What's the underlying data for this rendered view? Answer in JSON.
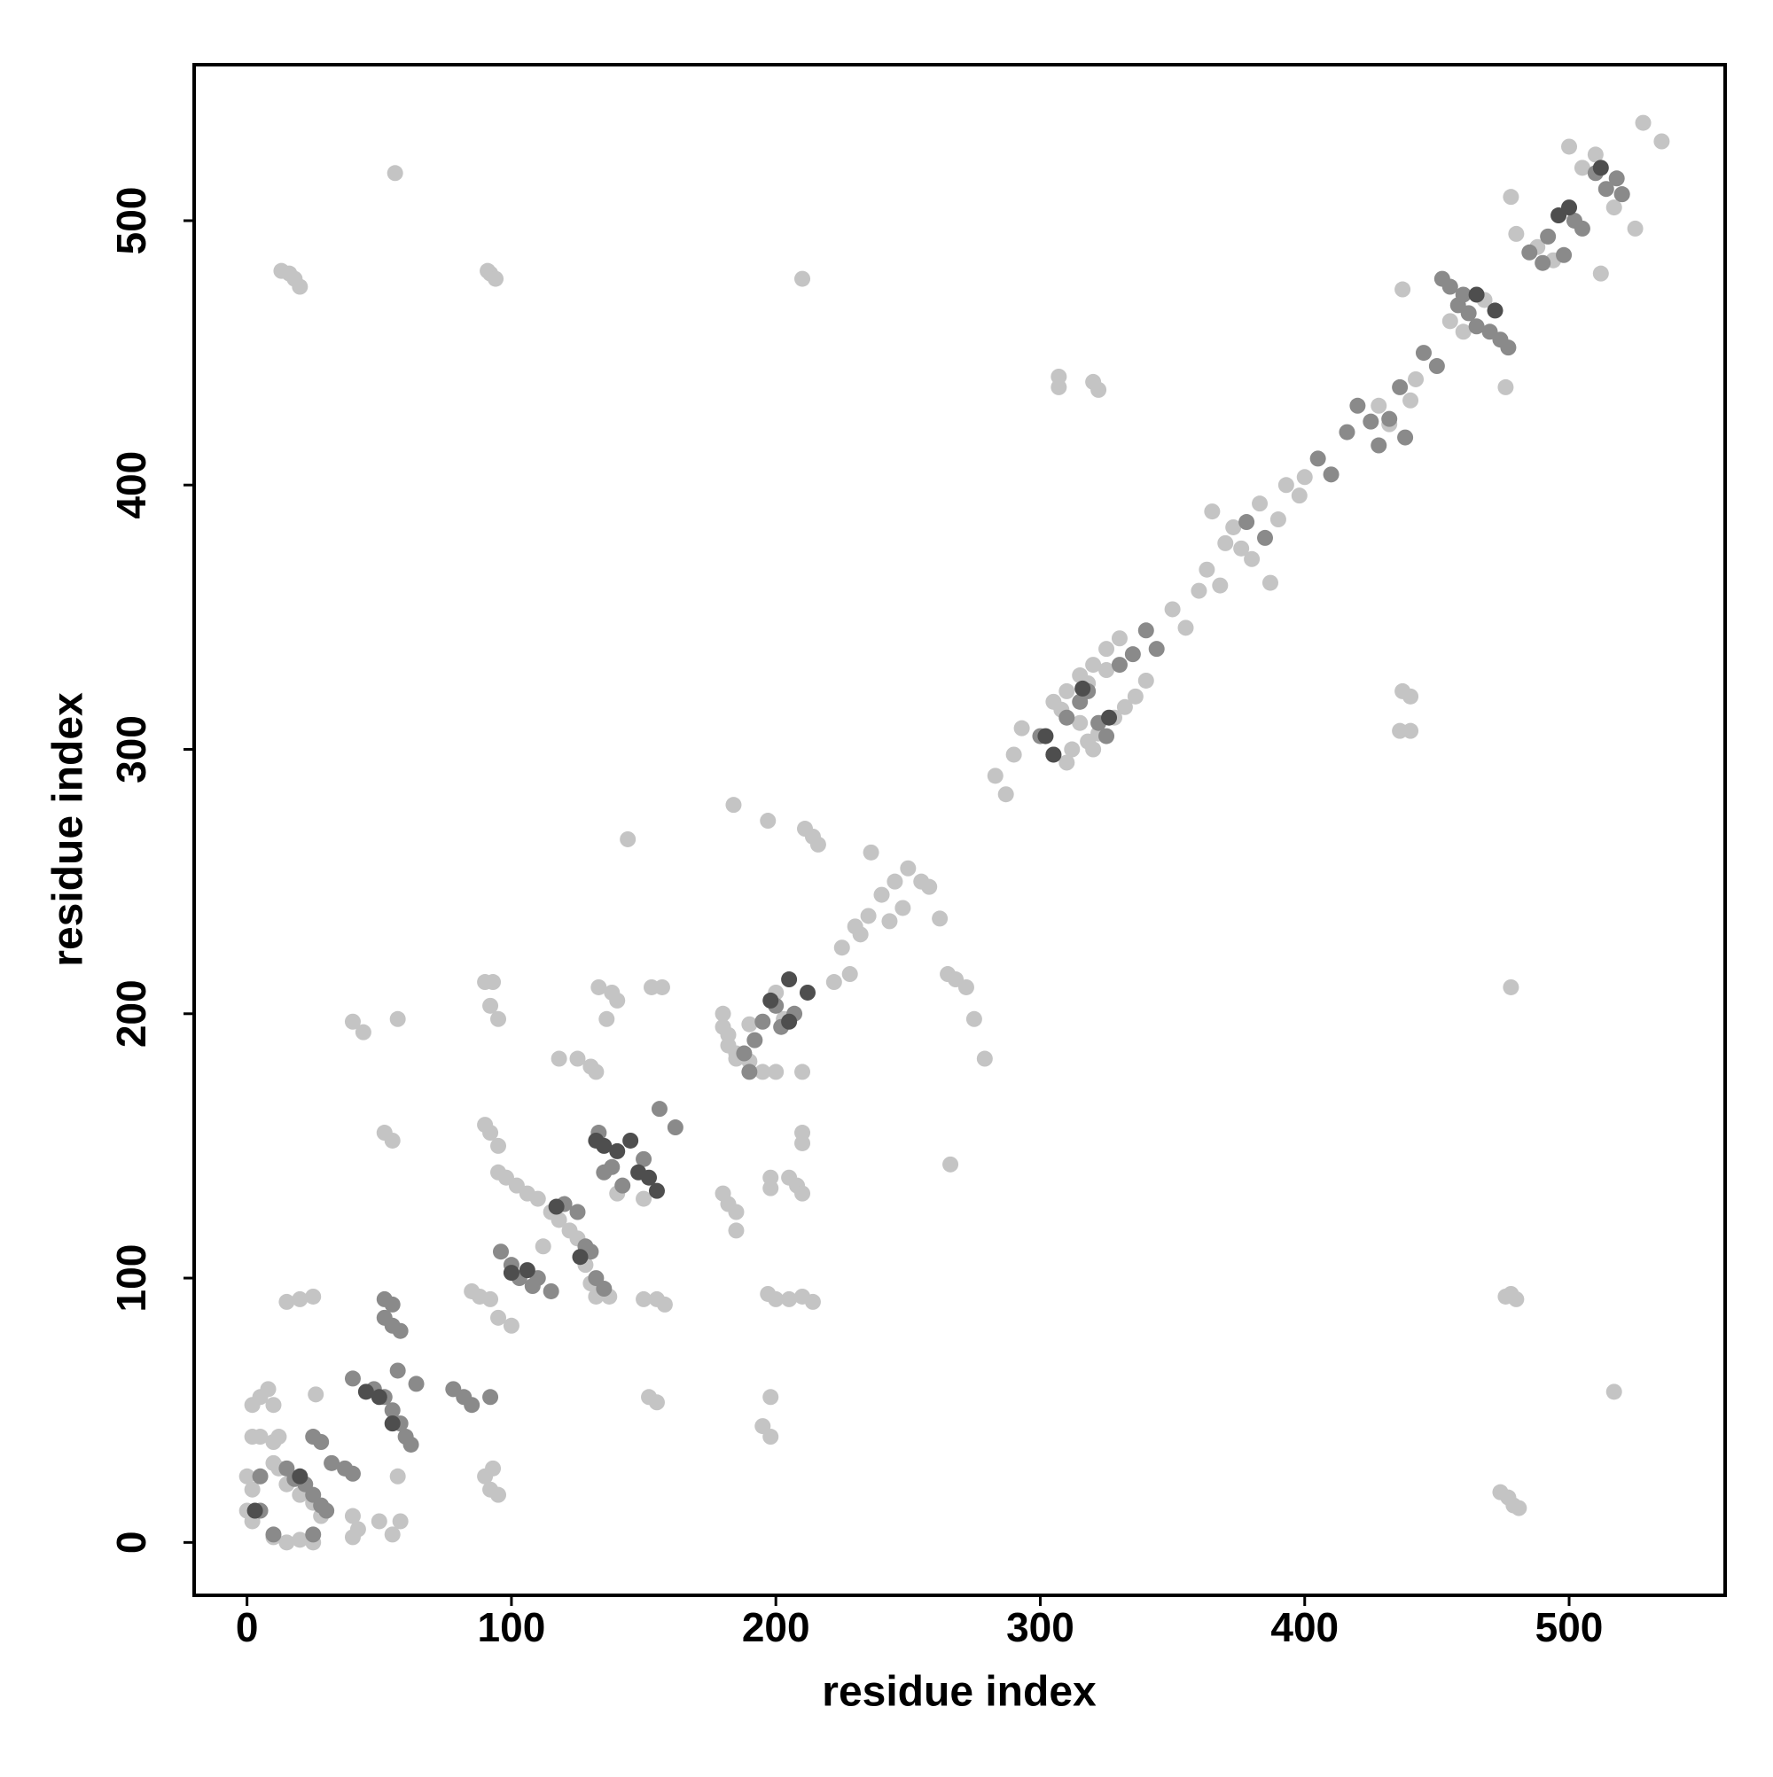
{
  "chart_data": {
    "type": "scatter",
    "xlabel": "residue index",
    "ylabel": "residue index",
    "xlim": [
      -20,
      559
    ],
    "ylim": [
      -20,
      559
    ],
    "xticks": [
      0,
      100,
      200,
      300,
      400,
      500
    ],
    "yticks": [
      0,
      100,
      200,
      300,
      400,
      500
    ],
    "grid": false,
    "series": [
      {
        "color": "#c4c4c4",
        "x": [
          56,
          13,
          16,
          18,
          20,
          91,
          92,
          94,
          210,
          307,
          307,
          320,
          322,
          437,
          476,
          478,
          478,
          437,
          440,
          436,
          440,
          184,
          197,
          211,
          214,
          216,
          144,
          236,
          262,
          265,
          268,
          272,
          275,
          279,
          266,
          225,
          230,
          235,
          240,
          245,
          250,
          255,
          258,
          248,
          243,
          232,
          228,
          222,
          283,
          287,
          290,
          293,
          305,
          310,
          315,
          320,
          325,
          330,
          312,
          318,
          322,
          328,
          332,
          336,
          340,
          308,
          318,
          325,
          315,
          320,
          310,
          350,
          355,
          360,
          363,
          365,
          368,
          370,
          373,
          376,
          380,
          383,
          387,
          390,
          393,
          398,
          400,
          428,
          432,
          440,
          442,
          455,
          460,
          468,
          480,
          488,
          494,
          500,
          505,
          510,
          525,
          528,
          535,
          517,
          512,
          520,
          478,
          480,
          476,
          474,
          477,
          479,
          481,
          517,
          195,
          198,
          198,
          197,
          200,
          205,
          210,
          214,
          198,
          205,
          208,
          210,
          198,
          210,
          210,
          210,
          180,
          180,
          182,
          185,
          190,
          195,
          200,
          180,
          182,
          185,
          185,
          182,
          190,
          200,
          203,
          185,
          133,
          138,
          140,
          136,
          140,
          150,
          153,
          157,
          155,
          158,
          150,
          152,
          155,
          125,
          130,
          132,
          90,
          92,
          95,
          95,
          98,
          102,
          106,
          110,
          112,
          115,
          118,
          122,
          125,
          128,
          130,
          132,
          137,
          118,
          90,
          93,
          92,
          95,
          85,
          88,
          95,
          100,
          92,
          52,
          55,
          57,
          40,
          44,
          57,
          40,
          42,
          50,
          55,
          58,
          40,
          20,
          25,
          15,
          2,
          5,
          8,
          10,
          2,
          5,
          10,
          12,
          0,
          2,
          0,
          2,
          10,
          12,
          15,
          20,
          25,
          28,
          10,
          15,
          20,
          25,
          92,
          90,
          95,
          93,
          26
        ],
        "y": [
          518,
          481,
          480,
          478,
          475,
          481,
          480,
          478,
          478,
          441,
          437,
          439,
          436,
          474,
          437,
          509,
          210,
          322,
          320,
          307,
          307,
          279,
          273,
          270,
          267,
          264,
          266,
          261,
          236,
          215,
          213,
          210,
          198,
          183,
          143,
          225,
          233,
          237,
          245,
          250,
          255,
          250,
          248,
          240,
          235,
          230,
          215,
          212,
          290,
          283,
          298,
          308,
          318,
          322,
          328,
          332,
          338,
          342,
          300,
          303,
          306,
          312,
          316,
          320,
          326,
          315,
          325,
          330,
          310,
          300,
          295,
          353,
          346,
          360,
          368,
          390,
          362,
          378,
          384,
          376,
          372,
          393,
          363,
          387,
          400,
          396,
          403,
          430,
          423,
          432,
          440,
          462,
          458,
          470,
          495,
          490,
          485,
          528,
          520,
          525,
          497,
          537,
          530,
          505,
          480,
          510,
          94,
          92,
          93,
          19,
          17,
          14,
          13,
          57,
          44,
          40,
          55,
          94,
          92,
          92,
          93,
          91,
          138,
          138,
          135,
          132,
          134,
          155,
          151,
          178,
          200,
          195,
          188,
          183,
          182,
          178,
          178,
          132,
          128,
          125,
          118,
          192,
          196,
          208,
          198,
          185,
          210,
          208,
          205,
          198,
          132,
          130,
          210,
          210,
          92,
          90,
          92,
          55,
          53,
          183,
          180,
          178,
          158,
          155,
          150,
          140,
          138,
          135,
          132,
          130,
          112,
          125,
          122,
          118,
          115,
          105,
          98,
          93,
          93,
          183,
          212,
          212,
          203,
          198,
          95,
          93,
          85,
          82,
          92,
          155,
          152,
          198,
          197,
          193,
          25,
          10,
          5,
          8,
          3,
          8,
          2,
          92,
          93,
          91,
          52,
          55,
          58,
          52,
          40,
          40,
          38,
          40,
          25,
          20,
          12,
          8,
          30,
          28,
          22,
          18,
          15,
          10,
          2,
          0,
          1,
          0,
          20,
          25,
          18,
          28,
          56
        ]
      },
      {
        "color": "#8a8a8a",
        "x": [
          300,
          305,
          310,
          315,
          318,
          322,
          325,
          330,
          335,
          340,
          344,
          378,
          385,
          405,
          410,
          416,
          420,
          425,
          428,
          432,
          436,
          438,
          445,
          450,
          452,
          455,
          458,
          462,
          465,
          470,
          474,
          477,
          460,
          485,
          490,
          492,
          498,
          502,
          505,
          510,
          514,
          518,
          520,
          188,
          192,
          195,
          200,
          202,
          207,
          190,
          133,
          138,
          142,
          150,
          156,
          162,
          135,
          96,
          100,
          103,
          108,
          110,
          115,
          120,
          125,
          128,
          130,
          132,
          135,
          52,
          55,
          52,
          55,
          58,
          48,
          52,
          55,
          58,
          60,
          62,
          57,
          64,
          78,
          82,
          85,
          92,
          40,
          5,
          15,
          18,
          22,
          25,
          28,
          30,
          28,
          32,
          37,
          40,
          25,
          10,
          25,
          5
        ],
        "y": [
          305,
          298,
          312,
          318,
          322,
          310,
          305,
          332,
          336,
          345,
          338,
          386,
          380,
          410,
          404,
          420,
          430,
          424,
          415,
          425,
          437,
          418,
          450,
          445,
          478,
          475,
          468,
          465,
          460,
          458,
          455,
          452,
          472,
          488,
          484,
          494,
          487,
          500,
          497,
          518,
          512,
          516,
          510,
          185,
          190,
          197,
          203,
          195,
          200,
          178,
          155,
          142,
          135,
          145,
          164,
          157,
          140,
          110,
          105,
          100,
          97,
          100,
          95,
          128,
          125,
          112,
          110,
          100,
          96,
          92,
          90,
          85,
          82,
          80,
          58,
          55,
          50,
          45,
          40,
          37,
          65,
          60,
          58,
          55,
          52,
          55,
          62,
          25,
          28,
          24,
          22,
          18,
          14,
          12,
          38,
          30,
          28,
          26,
          40,
          3,
          3,
          12
        ]
      },
      {
        "color": "#4e4e4e",
        "x": [
          302,
          305,
          316,
          326,
          465,
          472,
          496,
          500,
          512,
          198,
          205,
          212,
          205,
          132,
          135,
          140,
          145,
          148,
          152,
          155,
          100,
          106,
          117,
          126,
          45,
          55,
          50,
          20,
          3
        ],
        "y": [
          305,
          298,
          323,
          312,
          472,
          466,
          502,
          505,
          520,
          205,
          213,
          208,
          197,
          152,
          150,
          148,
          152,
          140,
          138,
          133,
          102,
          103,
          127,
          108,
          57,
          45,
          55,
          25,
          12
        ]
      }
    ]
  }
}
